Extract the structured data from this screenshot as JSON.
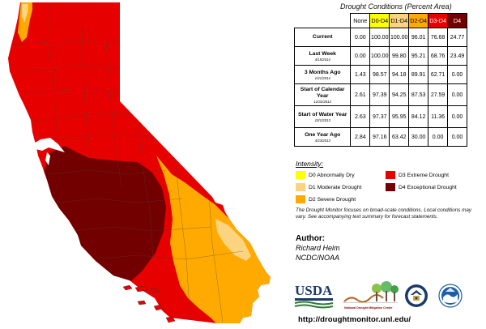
{
  "table": {
    "title": "Drought Conditions (Percent Area)",
    "columns": [
      {
        "label": "None",
        "color": "#ffffff"
      },
      {
        "label": "D0-D4",
        "color": "#ffff00"
      },
      {
        "label": "D1-D4",
        "color": "#fcd37f"
      },
      {
        "label": "D2-D4",
        "color": "#ffaa00"
      },
      {
        "label": "D3-D4",
        "color": "#e60000"
      },
      {
        "label": "D4",
        "color": "#730000"
      }
    ],
    "rows": [
      {
        "label": "Current",
        "sub": "",
        "values": [
          "0.00",
          "100.00",
          "100.00",
          "96.01",
          "76.68",
          "24.77"
        ]
      },
      {
        "label": "Last Week",
        "sub": "4/15/2014",
        "values": [
          "0.00",
          "100.00",
          "99.80",
          "95.21",
          "68.76",
          "23.49"
        ]
      },
      {
        "label": "3 Months Ago",
        "sub": "1/21/2014",
        "values": [
          "1.43",
          "98.57",
          "94.18",
          "89.91",
          "62.71",
          "0.00"
        ]
      },
      {
        "label": "Start of Calendar Year",
        "sub": "12/31/2013",
        "values": [
          "2.61",
          "97.39",
          "94.25",
          "87.53",
          "27.59",
          "0.00"
        ]
      },
      {
        "label": "Start of Water Year",
        "sub": "10/1/2013",
        "values": [
          "2.63",
          "97.37",
          "95.95",
          "84.12",
          "11.36",
          "0.00"
        ]
      },
      {
        "label": "One Year Ago",
        "sub": "4/23/2013",
        "values": [
          "2.84",
          "97.16",
          "63.42",
          "30.00",
          "0.00",
          "0.00"
        ]
      }
    ]
  },
  "legend": {
    "title": "Intensity:",
    "items": [
      {
        "label": "D0 Abnormally Dry",
        "color": "#ffff00"
      },
      {
        "label": "D1 Moderate Drought",
        "color": "#fcd37f"
      },
      {
        "label": "D2 Severe Drought",
        "color": "#ffaa00"
      },
      {
        "label": "D3 Extreme Drought",
        "color": "#e60000"
      },
      {
        "label": "D4 Exceptional Drought",
        "color": "#730000"
      }
    ]
  },
  "note": "The Drought Monitor focuses on broad-scale conditions. Local conditions may vary. See accompanying text summary for forecast statements.",
  "author": {
    "title": "Author:",
    "name": "Richard Heim",
    "org": "NCDC/NOAA"
  },
  "logos": {
    "usda": "USDA",
    "ndmc": "National Drought Mitigation Center"
  },
  "url": "http://droughtmonitor.unl.edu/"
}
